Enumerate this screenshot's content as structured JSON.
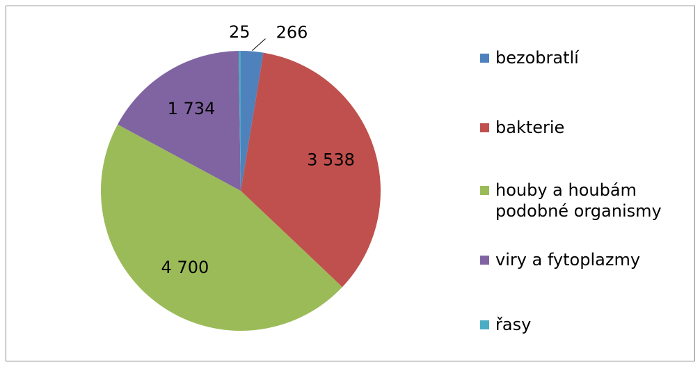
{
  "chart_data": {
    "type": "pie",
    "categories": [
      "bezobratlí",
      "bakterie",
      "houby a houbám podobné organismy",
      "viry a fytoplazmy",
      "řasy"
    ],
    "values": [
      266,
      3538,
      4700,
      1734,
      25
    ],
    "value_labels": [
      "266",
      "3 538",
      "4 700",
      "1 734",
      "25"
    ],
    "colors": [
      "#4f81bd",
      "#c0504d",
      "#9bbb59",
      "#8064a2",
      "#4bacc6"
    ],
    "legend": "right"
  }
}
